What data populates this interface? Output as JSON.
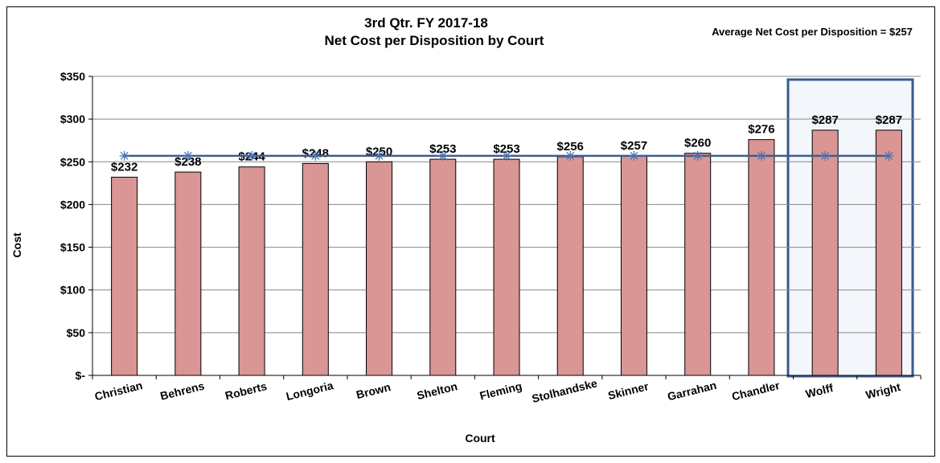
{
  "chart_data": {
    "type": "bar",
    "title": "3rd Qtr. FY 2017-18",
    "subtitle": "Net Cost per Disposition by Court",
    "annotation": "Average Net Cost per Disposition = $257",
    "x_label": "Court",
    "y_label": "Cost",
    "categories": [
      "Christian",
      "Behrens",
      "Roberts",
      "Longoria",
      "Brown",
      "Shelton",
      "Fleming",
      "Stolhandske",
      "Skinner",
      "Garrahan",
      "Chandler",
      "Wolff",
      "Wright"
    ],
    "series": [
      {
        "type": "bar",
        "color": "#d99694",
        "values": [
          232,
          238,
          244,
          248,
          250,
          253,
          253,
          256,
          257,
          260,
          276,
          287,
          287
        ],
        "value_labels": [
          "$232",
          "$238",
          "$244",
          "$248",
          "$250",
          "$253",
          "$253",
          "$256",
          "$257",
          "$260",
          "$276",
          "$287",
          "$287"
        ]
      },
      {
        "type": "line",
        "color": "#3a5f8f",
        "values": [
          257,
          257,
          257,
          257,
          257,
          257,
          257,
          257,
          257,
          257,
          257,
          257,
          257
        ]
      }
    ],
    "ylim": [
      0,
      350
    ],
    "yticks": [
      {
        "value": 0,
        "label": "$-"
      },
      {
        "value": 50,
        "label": "$50"
      },
      {
        "value": 100,
        "label": "$100"
      },
      {
        "value": 150,
        "label": "$150"
      },
      {
        "value": 200,
        "label": "$200"
      },
      {
        "value": 250,
        "label": "$250"
      },
      {
        "value": 300,
        "label": "$300"
      },
      {
        "value": 350,
        "label": "$350"
      }
    ],
    "grid": true
  }
}
